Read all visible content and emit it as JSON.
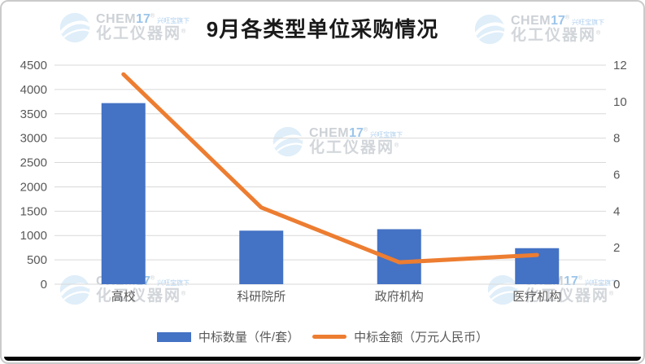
{
  "title": "9月各类型单位采购情况",
  "chart_data": {
    "type": "bar",
    "subtype": "combo-bar-line",
    "title": "9月各类型单位采购情况",
    "categories": [
      "高校",
      "科研院所",
      "政府机构",
      "医疗机构"
    ],
    "series": [
      {
        "name": "中标数量（件/套）",
        "type": "bar",
        "axis": "left",
        "color": "#4472C4",
        "values": [
          3720,
          1100,
          1130,
          740
        ]
      },
      {
        "name": "中标金额（万元人民币）",
        "type": "line",
        "axis": "right",
        "color": "#ED7D31",
        "values": [
          11.5,
          4.2,
          1.2,
          1.6
        ]
      }
    ],
    "left_axis": {
      "min": 0,
      "max": 4500,
      "step": 500,
      "ticks": [
        "0",
        "500",
        "1000",
        "1500",
        "2000",
        "2500",
        "3000",
        "3500",
        "4000",
        "4500"
      ]
    },
    "right_axis": {
      "min": 0,
      "max": 12,
      "step": 2,
      "ticks": [
        "0",
        "2",
        "4",
        "6",
        "8",
        "10",
        "12"
      ]
    },
    "grid": true,
    "legend_position": "bottom"
  },
  "watermark": {
    "brand": "CHEM",
    "brand_suffix": "17",
    "tagline": "兴旺宝旗下",
    "site": "化工仪器网",
    "reg": "®"
  },
  "colors": {
    "bar": "#4472C4",
    "line": "#ED7D31",
    "grid": "#D9D9D9",
    "axis_text": "#595959",
    "title_text": "#1A1A1A",
    "bottom_bar": "#050505",
    "frame_border": "#CBCBCB",
    "watermark_blue": "#BFDDF4",
    "watermark_gray": "#D2D6DA"
  }
}
